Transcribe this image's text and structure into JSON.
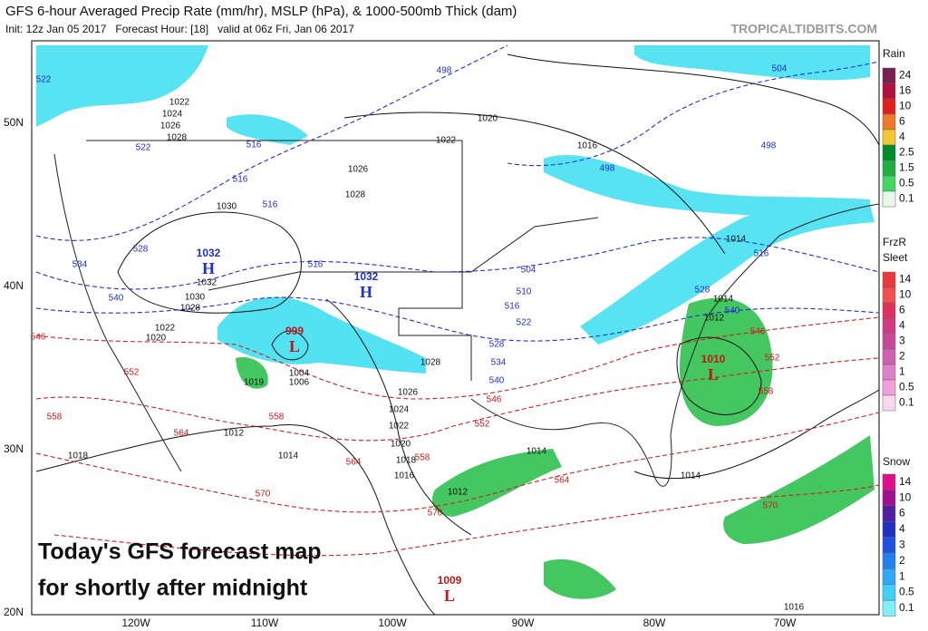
{
  "header": {
    "title": "GFS 6-hour Averaged Precip Rate (mm/hr), MSLP (hPa), & 1000-500mb Thick (dam)",
    "subtitle": "Init: 12z Jan 05 2017   Forecast Hour: [18]   valid at 06z Fri, Jan 06 2017",
    "site": "TROPICALTIDBITS.COM"
  },
  "map": {
    "lat_labels": [
      "50N",
      "40N",
      "30N",
      "20N"
    ],
    "lon_labels": [
      "120W",
      "110W",
      "100W",
      "90W",
      "80W",
      "70W"
    ],
    "centers": [
      {
        "value": "1032",
        "letter": "H"
      },
      {
        "value": "1032",
        "letter": "H"
      },
      {
        "value": "999",
        "letter": "L"
      },
      {
        "value": "1010",
        "letter": "L"
      },
      {
        "value": "1009",
        "letter": "L"
      }
    ],
    "isobar_labels": [
      "1022",
      "1024",
      "1026",
      "1028",
      "1030",
      "1032",
      "1030",
      "1028",
      "1022",
      "1020",
      "1020",
      "1022",
      "1016",
      "1026",
      "1028",
      "1028",
      "1026",
      "1024",
      "1022",
      "1020",
      "1018",
      "1016",
      "1014",
      "1012",
      "1019",
      "1004",
      "1006",
      "1018",
      "1012",
      "1014",
      "1014",
      "1012",
      "1014",
      "1014",
      "1016"
    ],
    "cold_thickness_labels": [
      "522",
      "522",
      "516",
      "516",
      "516",
      "528",
      "534",
      "540",
      "516",
      "504",
      "510",
      "516",
      "522",
      "528",
      "534",
      "540",
      "540",
      "516",
      "528",
      "498",
      "504",
      "498",
      "498"
    ],
    "warm_thickness_labels": [
      "546",
      "552",
      "558",
      "564",
      "570",
      "546",
      "552",
      "558",
      "564",
      "564",
      "570",
      "546",
      "552",
      "558",
      "570",
      "558"
    ]
  },
  "legends": [
    {
      "titles": [
        "Rain"
      ],
      "labels": [
        "24",
        "16",
        "10",
        "6",
        "4",
        "2.5",
        "1.5",
        "0.5",
        "0.1"
      ],
      "colors": [
        "#7a1f52",
        "#b0103a",
        "#e02020",
        "#f07828",
        "#f4c830",
        "#008a30",
        "#1fb040",
        "#40d860",
        "#e8f8e8"
      ]
    },
    {
      "titles": [
        "FrzR",
        "Sleet"
      ],
      "labels": [
        "14",
        "10",
        "6",
        "4",
        "3",
        "2",
        "1",
        "0.5",
        "0.1"
      ],
      "colors": [
        "#e83a3a",
        "#f05050",
        "#e03060",
        "#d03a80",
        "#c84898",
        "#d060b0",
        "#e080c8",
        "#f0a0dc",
        "#f8d8f0"
      ]
    },
    {
      "titles": [
        "Snow"
      ],
      "labels": [
        "14",
        "10",
        "6",
        "4",
        "3",
        "2",
        "1",
        "0.5",
        "0.1"
      ],
      "colors": [
        "#e0108a",
        "#a01090",
        "#5020a0",
        "#2030c0",
        "#2050e0",
        "#2080f0",
        "#30a8f8",
        "#40d0f8",
        "#80f0f8"
      ]
    }
  ],
  "caption": [
    "Today's GFS forecast map",
    "for shortly after midnight"
  ]
}
